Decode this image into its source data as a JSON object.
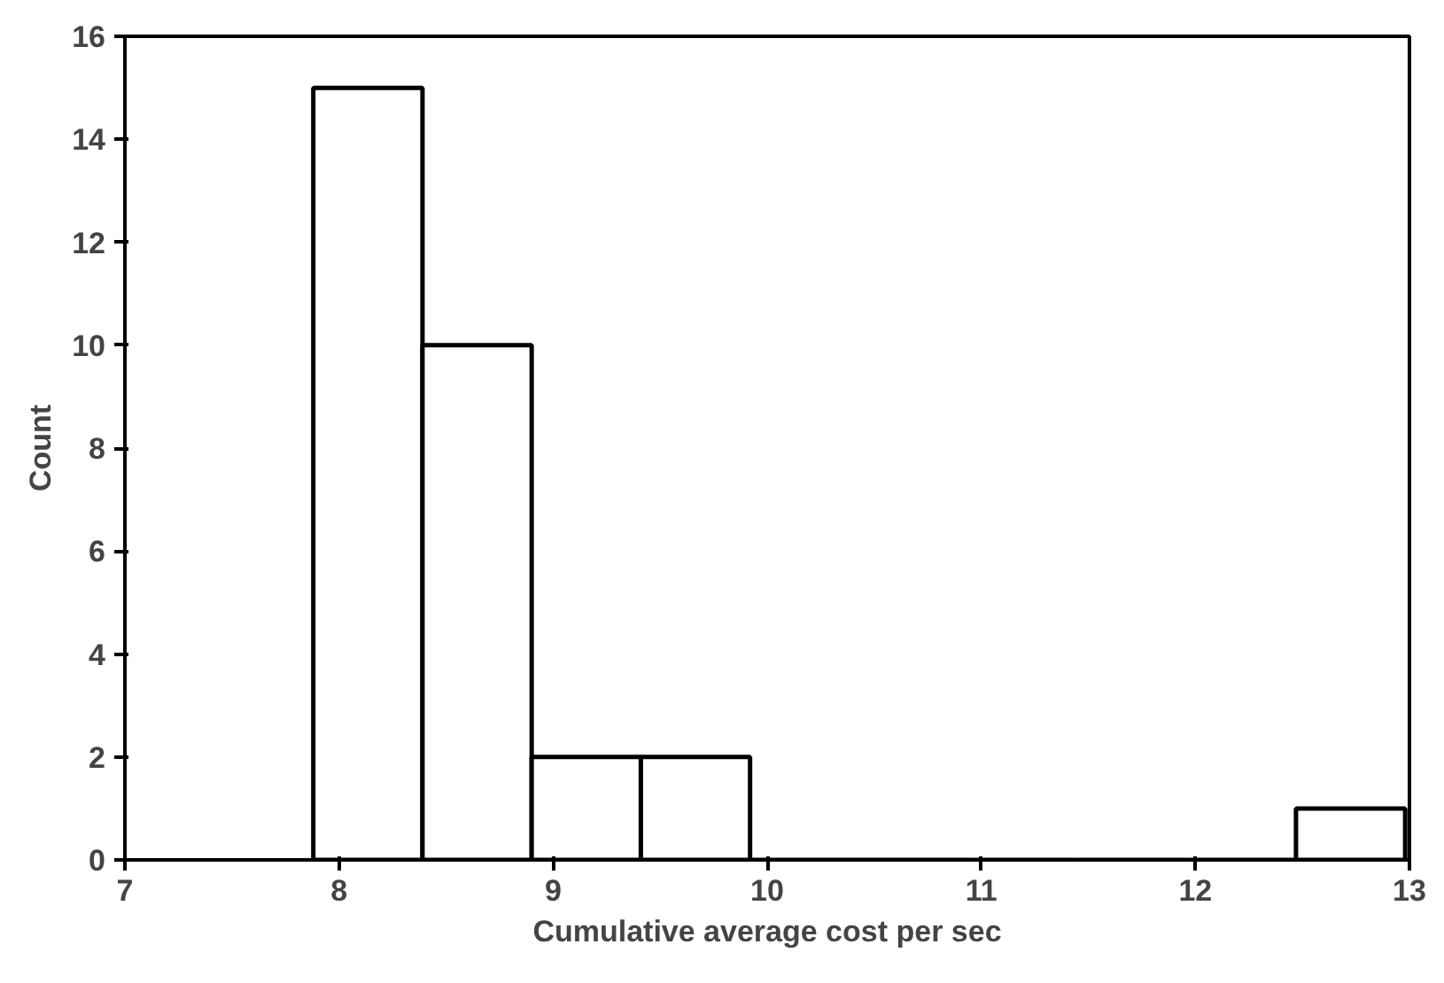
{
  "chart_data": {
    "type": "histogram",
    "xlabel": "Cumulative average cost per sec",
    "ylabel": "Count",
    "bins": [
      7.88,
      8.39,
      8.9,
      9.41,
      9.92,
      10.43,
      10.94,
      11.45,
      11.96,
      12.47,
      12.98
    ],
    "values": [
      15,
      10,
      2,
      2,
      0,
      0,
      0,
      0,
      0,
      1
    ],
    "color": "#ffffff",
    "xlim": [
      7,
      13
    ],
    "xticks": [
      7,
      8,
      9,
      10,
      11,
      12,
      13
    ],
    "ylim": [
      0,
      16
    ],
    "yticks": [
      0,
      2,
      4,
      6,
      8,
      10,
      12,
      14,
      16
    ],
    "grid": false
  }
}
